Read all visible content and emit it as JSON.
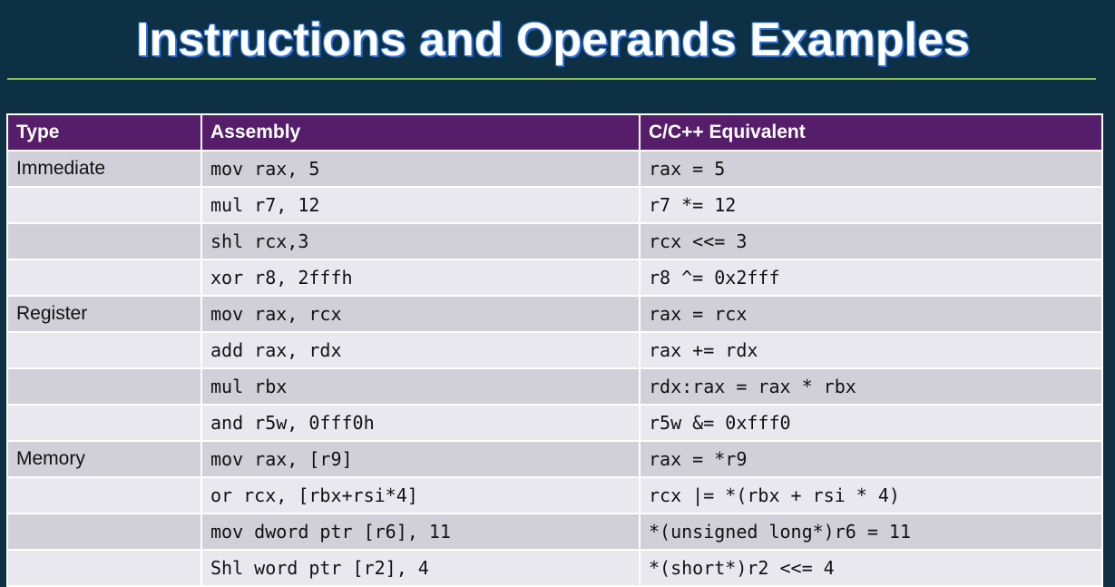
{
  "title": "Instructions and Operands Examples",
  "table": {
    "header": [
      "Type",
      "Assembly",
      "C/C++ Equivalent"
    ],
    "rows": [
      [
        "Immediate",
        "mov rax, 5",
        "rax = 5"
      ],
      [
        null,
        "mul r7, 12",
        "r7 *= 12"
      ],
      [
        null,
        "shl rcx,3",
        "rcx <<= 3"
      ],
      [
        null,
        "xor r8, 2fffh",
        "r8 ^= 0x2fff"
      ],
      [
        "Register",
        "mov rax, rcx",
        "rax = rcx"
      ],
      [
        null,
        "add rax, rdx",
        "rax += rdx"
      ],
      [
        null,
        "mul rbx",
        "rdx:rax = rax * rbx"
      ],
      [
        null,
        "and r5w, 0fff0h",
        "r5w &= 0xfff0"
      ],
      [
        "Memory",
        "mov rax, [r9]",
        "rax = *r9"
      ],
      [
        null,
        "or rcx, [rbx+rsi*4]",
        "rcx |= *(rbx + rsi * 4)"
      ],
      [
        null,
        "mov dword ptr [r6], 11",
        "*(unsigned long*)r6 = 11"
      ],
      [
        null,
        "Shl word ptr [r2], 4",
        "*(short*)r2 <<= 4"
      ]
    ]
  }
}
